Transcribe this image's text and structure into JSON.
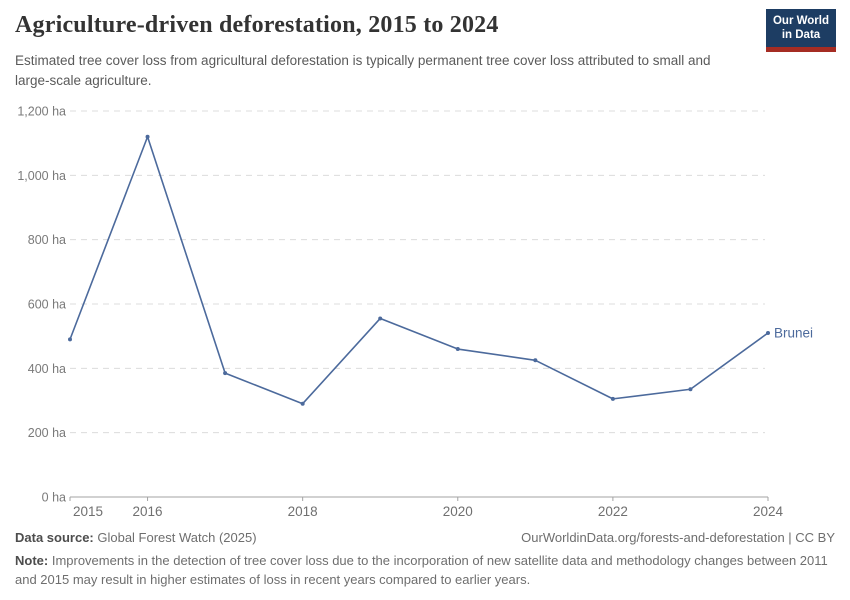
{
  "header": {
    "title": "Agriculture-driven deforestation, 2015 to 2024",
    "subtitle": "Estimated tree cover loss from agricultural deforestation is typically permanent tree cover loss attributed to small and large-scale agriculture.",
    "logo": {
      "line1": "Our World",
      "line2": "in Data",
      "bg_color": "#1d3d63",
      "accent_color": "#a52c23"
    }
  },
  "chart_data": {
    "type": "line",
    "title": "Agriculture-driven deforestation, 2015 to 2024",
    "unit": "ha",
    "x": [
      2015,
      2016,
      2017,
      2018,
      2019,
      2020,
      2021,
      2022,
      2023,
      2024
    ],
    "series": [
      {
        "name": "Brunei",
        "color": "#4C6A9C",
        "values": [
          490,
          1120,
          385,
          290,
          555,
          460,
          425,
          305,
          335,
          510
        ]
      }
    ],
    "ylim": [
      0,
      1200
    ],
    "yticks": [
      {
        "value": 0,
        "label": "0 ha"
      },
      {
        "value": 200,
        "label": "200 ha"
      },
      {
        "value": 400,
        "label": "400 ha"
      },
      {
        "value": 600,
        "label": "600 ha"
      },
      {
        "value": 800,
        "label": "800 ha"
      },
      {
        "value": 1000,
        "label": "1,000 ha"
      },
      {
        "value": 1200,
        "label": "1,200 ha"
      }
    ],
    "xticks": [
      2015,
      2016,
      2018,
      2020,
      2022,
      2024
    ],
    "grid": "horizontal-dashed",
    "grid_color": "#dcdcdc",
    "axis_color": "#a3a3a3",
    "legend_position": "end-of-line-label"
  },
  "footer": {
    "datasource_label": "Data source:",
    "datasource_text": " Global Forest Watch (2025)",
    "attribution": "OurWorldinData.org/forests-and-deforestation | CC BY",
    "note_label": "Note:",
    "note_text": " Improvements in the detection of tree cover loss due to the incorporation of new satellite data and methodology changes between 2011 and 2015 may result in higher estimates of loss in recent years compared to earlier years."
  }
}
